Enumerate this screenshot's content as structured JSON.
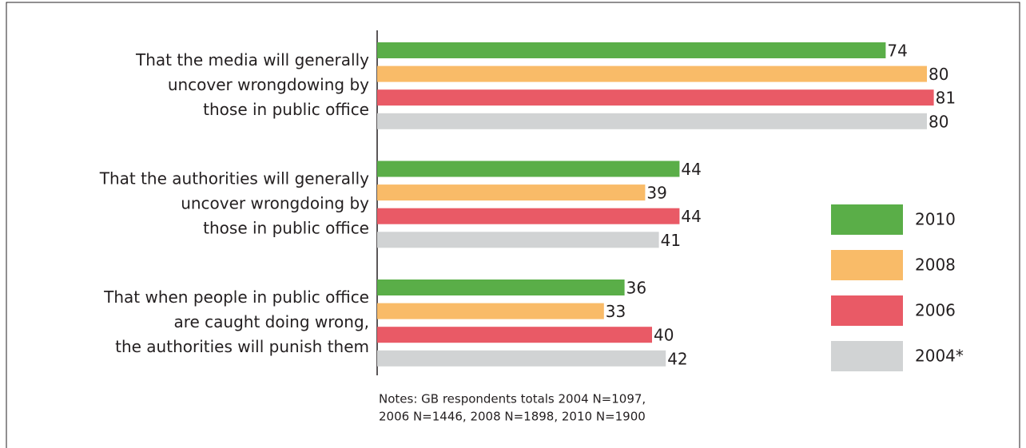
{
  "chart_data": {
    "type": "bar",
    "orientation": "horizontal",
    "categories": [
      [
        "That the media will generally",
        "uncover wrongdowing by",
        "those in public office"
      ],
      [
        "That the authorities will generally",
        "uncover wrongdoing by",
        "those in public office"
      ],
      [
        "That when people in public office",
        "are caught doing wrong,",
        "the authorities will punish them"
      ]
    ],
    "series": [
      {
        "name": "2010",
        "color": "#5aae48",
        "values": [
          74,
          44,
          36
        ]
      },
      {
        "name": "2008",
        "color": "#f9bb68",
        "values": [
          80,
          39,
          33
        ]
      },
      {
        "name": "2006",
        "color": "#e95a66",
        "values": [
          81,
          44,
          40
        ]
      },
      {
        "name": "2004*",
        "color": "#d1d3d4",
        "values": [
          80,
          41,
          42
        ]
      }
    ],
    "xlim": [
      0,
      90
    ],
    "legend": "right",
    "notes": [
      "Notes: GB respondents totals 2004 N=1097,",
      "2006 N=1446, 2008 N=1898, 2010 N=1900"
    ]
  }
}
